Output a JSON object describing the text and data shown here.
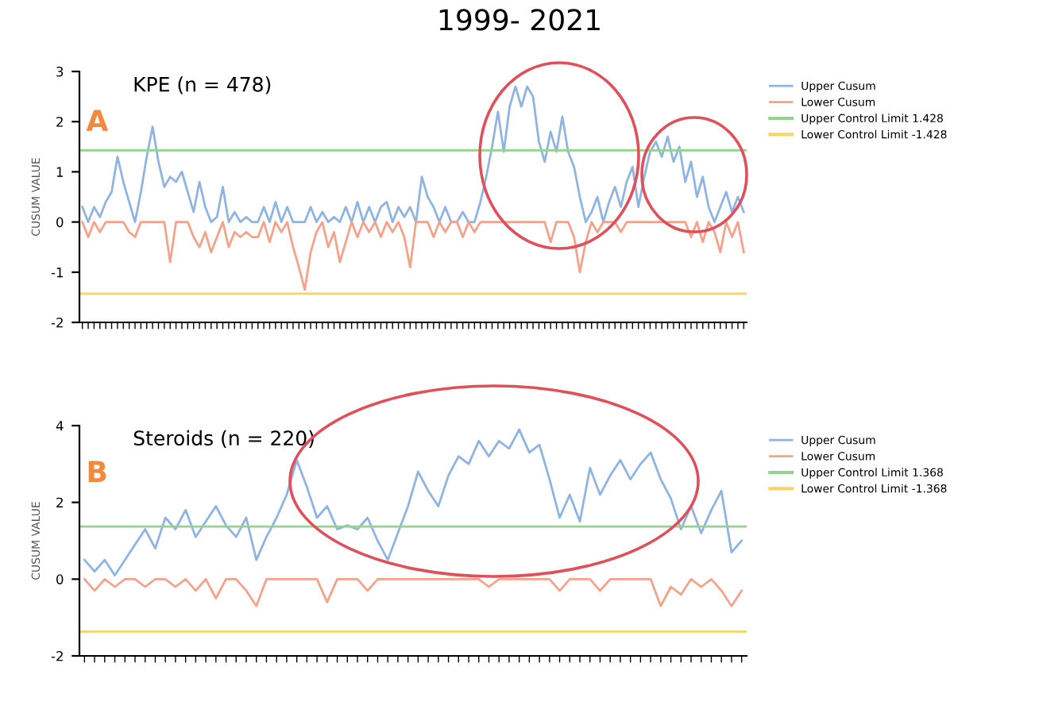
{
  "chart_data": [
    {
      "type": "line",
      "title": "1999- 2021",
      "subtitle": "KPE (n = 478)",
      "ylabel": "CUSUM VALUE",
      "annotations": [
        "A"
      ],
      "categories": [
        null,
        null,
        null,
        null,
        null,
        null,
        null,
        null,
        null,
        null,
        null,
        null,
        null,
        null,
        null,
        null,
        null,
        null,
        null,
        null,
        null,
        null,
        null,
        null,
        null,
        null,
        null,
        null,
        null,
        null,
        null,
        null,
        null,
        null,
        null,
        null,
        null,
        null,
        null,
        null,
        null,
        null,
        null,
        null,
        null,
        null,
        null,
        null,
        null,
        null,
        null,
        null,
        null,
        null,
        null,
        null,
        null,
        null,
        null,
        null,
        null,
        null,
        null,
        null,
        null,
        null,
        null,
        null,
        null,
        null,
        null,
        null,
        null,
        null,
        null,
        null,
        null,
        null,
        null,
        null,
        null,
        null,
        null,
        null,
        null,
        null,
        null,
        null,
        null,
        null,
        null,
        null,
        null,
        null,
        null,
        null,
        null,
        null,
        null,
        null,
        null,
        null,
        null,
        null,
        null,
        null,
        null,
        null,
        null,
        null,
        null,
        null,
        null,
        null
      ],
      "series": [
        {
          "name": "Upper Cusum",
          "color": "#8fb4e3",
          "values": [
            0.3,
            0,
            0.3,
            0.1,
            0.4,
            0.6,
            1.3,
            0.8,
            0.4,
            0,
            0.6,
            1.3,
            1.9,
            1.2,
            0.7,
            0.9,
            0.8,
            1.0,
            0.6,
            0.2,
            0.8,
            0.3,
            0,
            0.1,
            0.7,
            0,
            0.2,
            0,
            0.1,
            0,
            0,
            0.3,
            0,
            0.4,
            0,
            0.3,
            0,
            0,
            0,
            0.3,
            0,
            0.2,
            0,
            0.1,
            0,
            0.3,
            0,
            0.4,
            0,
            0.3,
            0,
            0.3,
            0.4,
            0,
            0.3,
            0.1,
            0.3,
            0,
            0.9,
            0.5,
            0.3,
            0,
            0.3,
            0,
            0,
            0.2,
            0,
            0,
            0.4,
            0.9,
            1.5,
            2.2,
            1.4,
            2.3,
            2.7,
            2.3,
            2.7,
            2.5,
            1.6,
            1.2,
            1.8,
            1.4,
            2.1,
            1.4,
            1.1,
            0.5,
            0,
            0.2,
            0.5,
            0,
            0.4,
            0.7,
            0.3,
            0.8,
            1.1,
            0.3,
            0.9,
            1.4,
            1.6,
            1.3,
            1.7,
            1.2,
            1.5,
            0.8,
            1.2,
            0.5,
            0.9,
            0.3,
            0,
            0.3,
            0.6,
            0.2,
            0.5,
            0.2
          ]
        },
        {
          "name": "Lower Cusum",
          "color": "#f4a38a",
          "values": [
            0,
            -0.3,
            0,
            -0.2,
            0,
            0,
            0,
            0,
            -0.2,
            -0.3,
            0,
            0,
            0,
            0,
            0,
            -0.8,
            0,
            0,
            0,
            -0.3,
            -0.5,
            -0.2,
            -0.6,
            -0.3,
            0,
            -0.5,
            -0.2,
            -0.3,
            -0.2,
            -0.3,
            -0.3,
            0,
            -0.4,
            0,
            -0.2,
            0,
            -0.5,
            -0.9,
            -1.35,
            -0.6,
            -0.2,
            0,
            -0.5,
            -0.2,
            -0.8,
            -0.4,
            0,
            -0.3,
            0,
            -0.2,
            0,
            -0.3,
            0,
            -0.2,
            0,
            -0.3,
            -0.9,
            0,
            0,
            0,
            -0.3,
            0,
            -0.2,
            0,
            0,
            -0.3,
            0,
            -0.2,
            0,
            0,
            0,
            0,
            0,
            0,
            0,
            0,
            0,
            0,
            0,
            0,
            -0.4,
            0,
            0,
            0,
            -0.3,
            -1.0,
            -0.4,
            0,
            -0.2,
            0,
            0,
            0,
            -0.2,
            0,
            0,
            0,
            0,
            0,
            0,
            0,
            0,
            0,
            0,
            0,
            -0.3,
            0,
            -0.4,
            0,
            -0.2,
            -0.6,
            0,
            -0.3,
            0,
            -0.6
          ]
        }
      ],
      "ref_lines": [
        {
          "axis": "y",
          "value": 1.428,
          "label": "Upper Control Limit 1.428",
          "color": "#93d38f"
        },
        {
          "axis": "y",
          "value": -1.428,
          "label": "Lower Control Limit -1.428",
          "color": "#f7d36b"
        }
      ],
      "ylim": [
        -2,
        3
      ],
      "yticks": [
        -2,
        -1,
        0,
        1,
        2,
        3
      ],
      "grid": false,
      "legend": "right",
      "marker": "none",
      "line_style": "solid"
    },
    {
      "type": "line",
      "subtitle": "Steroids (n = 220)",
      "ylabel": "CUSUM VALUE",
      "annotations": [
        "B"
      ],
      "categories": [
        null,
        null,
        null,
        null,
        null,
        null,
        null,
        null,
        null,
        null,
        null,
        null,
        null,
        null,
        null,
        null,
        null,
        null,
        null,
        null,
        null,
        null,
        null,
        null,
        null,
        null,
        null,
        null,
        null,
        null,
        null,
        null,
        null,
        null,
        null,
        null,
        null,
        null,
        null,
        null,
        null,
        null,
        null,
        null,
        null,
        null,
        null,
        null,
        null,
        null,
        null,
        null,
        null,
        null,
        null,
        null,
        null,
        null,
        null,
        null,
        null,
        null,
        null,
        null,
        null,
        null
      ],
      "series": [
        {
          "name": "Upper Cusum",
          "color": "#8fb4e3",
          "values": [
            0.5,
            0.2,
            0.5,
            0.1,
            0.5,
            0.9,
            1.3,
            0.8,
            1.6,
            1.3,
            1.8,
            1.1,
            1.5,
            1.9,
            1.4,
            1.1,
            1.6,
            0.5,
            1.1,
            1.6,
            2.2,
            3.1,
            2.4,
            1.6,
            1.9,
            1.3,
            1.4,
            1.3,
            1.6,
            1.0,
            0.5,
            1.2,
            1.9,
            2.8,
            2.3,
            1.9,
            2.7,
            3.2,
            3.0,
            3.6,
            3.2,
            3.6,
            3.4,
            3.9,
            3.3,
            3.5,
            2.6,
            1.6,
            2.2,
            1.5,
            2.9,
            2.2,
            2.7,
            3.1,
            2.6,
            3.0,
            3.3,
            2.6,
            2.1,
            1.3,
            1.9,
            1.2,
            1.8,
            2.3,
            0.7,
            1.0
          ]
        },
        {
          "name": "Lower Cusum",
          "color": "#f4a38a",
          "values": [
            0,
            -0.3,
            0,
            -0.2,
            0,
            0,
            -0.2,
            0,
            0,
            -0.2,
            0,
            -0.3,
            0,
            -0.5,
            0,
            0,
            -0.3,
            -0.7,
            0,
            0,
            0,
            0,
            0,
            0,
            -0.6,
            0,
            0,
            0,
            -0.3,
            0,
            0,
            0,
            0,
            0,
            0,
            0,
            0,
            0,
            0,
            0,
            -0.2,
            0,
            0,
            0,
            0,
            0,
            0,
            -0.3,
            0,
            0,
            0,
            -0.3,
            0,
            0,
            0,
            0,
            0,
            -0.7,
            -0.2,
            -0.4,
            0,
            -0.2,
            0,
            -0.3,
            -0.7,
            -0.3
          ]
        }
      ],
      "ref_lines": [
        {
          "axis": "y",
          "value": 1.368,
          "label": "Upper Control Limit 1.368",
          "color": "#93d38f"
        },
        {
          "axis": "y",
          "value": -1.368,
          "label": "Lower Control Limit -1.368",
          "color": "#f7d36b"
        }
      ],
      "ylim": [
        -2,
        4
      ],
      "yticks": [
        -2,
        0,
        2,
        4
      ],
      "grid": false,
      "legend": "right",
      "marker": "none",
      "line_style": "solid"
    }
  ]
}
